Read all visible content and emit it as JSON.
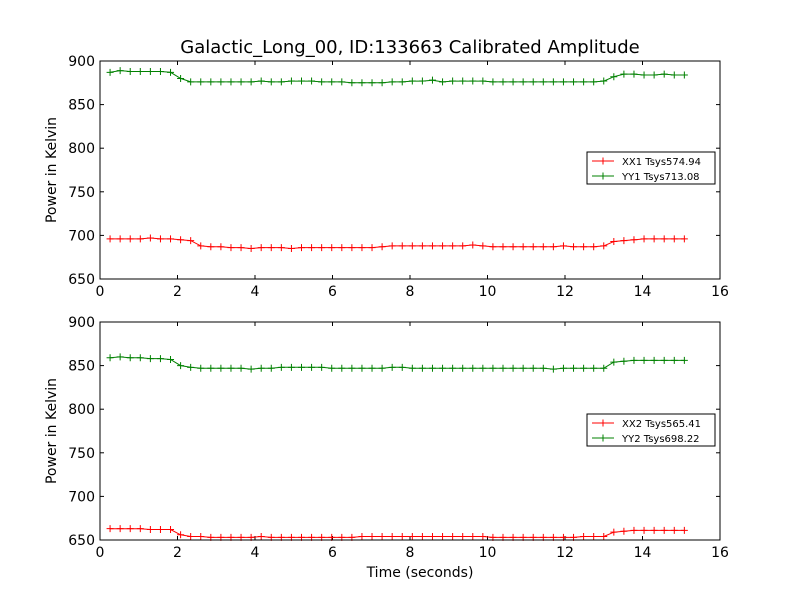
{
  "figure_title": "Galactic_Long_00, ID:133663 Calibrated Amplitude",
  "chart_data": [
    {
      "type": "line",
      "ylabel": "Power in Kelvin",
      "xlabel": "",
      "xlim": [
        0,
        16
      ],
      "ylim": [
        650,
        900
      ],
      "x_ticks": [
        "0",
        "2",
        "4",
        "6",
        "8",
        "10",
        "12",
        "14",
        "16"
      ],
      "y_ticks": [
        "650",
        "700",
        "750",
        "800",
        "850",
        "900"
      ],
      "legend_position": "center-right",
      "x": [
        0.26,
        0.52,
        0.78,
        1.04,
        1.3,
        1.56,
        1.82,
        2.08,
        2.34,
        2.6,
        2.86,
        3.12,
        3.38,
        3.64,
        3.9,
        4.16,
        4.42,
        4.68,
        4.94,
        5.2,
        5.46,
        5.72,
        5.98,
        6.24,
        6.5,
        6.76,
        7.02,
        7.28,
        7.54,
        7.8,
        8.06,
        8.32,
        8.58,
        8.84,
        9.1,
        9.36,
        9.62,
        9.88,
        10.14,
        10.4,
        10.66,
        10.92,
        11.18,
        11.44,
        11.7,
        11.96,
        12.22,
        12.48,
        12.74,
        13.0,
        13.26,
        13.52,
        13.78,
        14.04,
        14.3,
        14.56,
        14.82,
        15.08
      ],
      "series": [
        {
          "name": "XX1 Tsys574.94",
          "color": "#ff0000",
          "values": [
            696,
            696,
            696,
            696,
            697,
            696,
            696,
            695,
            694,
            688,
            687,
            687,
            686,
            686,
            685,
            686,
            686,
            686,
            685,
            686,
            686,
            686,
            686,
            686,
            686,
            686,
            686,
            687,
            688,
            688,
            688,
            688,
            688,
            688,
            688,
            688,
            689,
            688,
            687,
            687,
            687,
            687,
            687,
            687,
            687,
            688,
            687,
            687,
            687,
            688,
            693,
            694,
            695,
            696,
            696,
            696,
            696,
            696
          ]
        },
        {
          "name": "YY1 Tsys713.08",
          "color": "#008000",
          "values": [
            887,
            889,
            888,
            888,
            888,
            888,
            887,
            880,
            876,
            876,
            876,
            876,
            876,
            876,
            876,
            877,
            876,
            876,
            877,
            877,
            877,
            876,
            876,
            876,
            875,
            875,
            875,
            875,
            876,
            876,
            877,
            877,
            878,
            876,
            877,
            877,
            877,
            877,
            876,
            876,
            876,
            876,
            876,
            876,
            876,
            876,
            876,
            876,
            876,
            877,
            882,
            885,
            885,
            884,
            884,
            885,
            884,
            884
          ]
        }
      ]
    },
    {
      "type": "line",
      "ylabel": "Power in Kelvin",
      "xlabel": "Time (seconds)",
      "xlim": [
        0,
        16
      ],
      "ylim": [
        650,
        900
      ],
      "x_ticks": [
        "0",
        "2",
        "4",
        "6",
        "8",
        "10",
        "12",
        "14",
        "16"
      ],
      "y_ticks": [
        "650",
        "700",
        "750",
        "800",
        "850",
        "900"
      ],
      "legend_position": "center-right",
      "x": [
        0.26,
        0.52,
        0.78,
        1.04,
        1.3,
        1.56,
        1.82,
        2.08,
        2.34,
        2.6,
        2.86,
        3.12,
        3.38,
        3.64,
        3.9,
        4.16,
        4.42,
        4.68,
        4.94,
        5.2,
        5.46,
        5.72,
        5.98,
        6.24,
        6.5,
        6.76,
        7.02,
        7.28,
        7.54,
        7.8,
        8.06,
        8.32,
        8.58,
        8.84,
        9.1,
        9.36,
        9.62,
        9.88,
        10.14,
        10.4,
        10.66,
        10.92,
        11.18,
        11.44,
        11.7,
        11.96,
        12.22,
        12.48,
        12.74,
        13.0,
        13.26,
        13.52,
        13.78,
        14.04,
        14.3,
        14.56,
        14.82,
        15.08
      ],
      "series": [
        {
          "name": "XX2 Tsys565.41",
          "color": "#ff0000",
          "values": [
            663,
            663,
            663,
            663,
            662,
            662,
            662,
            656,
            654,
            654,
            653,
            653,
            653,
            653,
            653,
            654,
            653,
            653,
            653,
            653,
            653,
            653,
            653,
            653,
            653,
            654,
            654,
            654,
            654,
            654,
            654,
            654,
            654,
            654,
            654,
            654,
            654,
            654,
            653,
            653,
            653,
            653,
            653,
            653,
            653,
            653,
            653,
            654,
            654,
            654,
            659,
            660,
            661,
            661,
            661,
            661,
            661,
            661
          ]
        },
        {
          "name": "YY2 Tsys698.22",
          "color": "#008000",
          "values": [
            859,
            860,
            859,
            859,
            858,
            858,
            857,
            850,
            848,
            847,
            847,
            847,
            847,
            847,
            846,
            847,
            847,
            848,
            848,
            848,
            848,
            848,
            847,
            847,
            847,
            847,
            847,
            847,
            848,
            848,
            847,
            847,
            847,
            847,
            847,
            847,
            847,
            847,
            847,
            847,
            847,
            847,
            847,
            847,
            846,
            847,
            847,
            847,
            847,
            847,
            854,
            855,
            856,
            856,
            856,
            856,
            856,
            856
          ]
        }
      ]
    }
  ]
}
